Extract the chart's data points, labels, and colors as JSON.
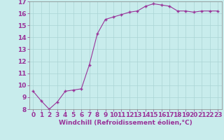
{
  "x": [
    0,
    1,
    2,
    3,
    4,
    5,
    6,
    7,
    8,
    9,
    10,
    11,
    12,
    13,
    14,
    15,
    16,
    17,
    18,
    19,
    20,
    21,
    22,
    23
  ],
  "y": [
    9.5,
    8.7,
    8.0,
    8.6,
    9.5,
    9.6,
    9.7,
    11.7,
    14.3,
    15.5,
    15.7,
    15.9,
    16.1,
    16.2,
    16.6,
    16.8,
    16.7,
    16.6,
    16.2,
    16.2,
    16.1,
    16.2,
    16.2,
    16.2
  ],
  "line_color": "#993399",
  "marker": "+",
  "xlabel": "Windchill (Refroidissement éolien,°C)",
  "xlabel_color": "#993399",
  "bg_color": "#c8ecec",
  "grid_color": "#aad4d4",
  "tick_color": "#993399",
  "spine_color": "#888888",
  "ylim": [
    8,
    17
  ],
  "xlim_min": -0.5,
  "xlim_max": 23.5,
  "yticks": [
    8,
    9,
    10,
    11,
    12,
    13,
    14,
    15,
    16,
    17
  ],
  "xticks": [
    0,
    1,
    2,
    3,
    4,
    5,
    6,
    7,
    8,
    9,
    10,
    11,
    12,
    13,
    14,
    15,
    16,
    17,
    18,
    19,
    20,
    21,
    22,
    23
  ],
  "tick_fontsize": 6.5,
  "xlabel_fontsize": 6.5
}
